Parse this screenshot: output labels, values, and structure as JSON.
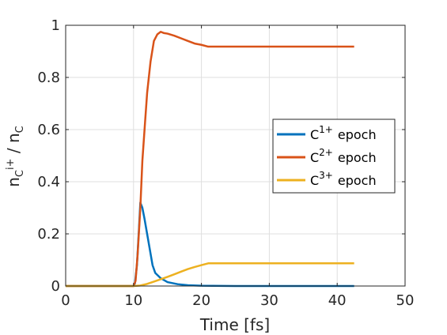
{
  "chart_data": {
    "type": "line",
    "xlabel": "Time [fs]",
    "ylabel": {
      "base1": "n",
      "sub1": "C",
      "sup1": "i+",
      "slash": " / ",
      "base2": "n",
      "sub2": "C"
    },
    "xlim": [
      0,
      50
    ],
    "ylim": [
      0,
      1
    ],
    "x_ticks": [
      0,
      10,
      20,
      30,
      40,
      50
    ],
    "y_ticks": [
      0,
      0.2,
      0.4,
      0.6,
      0.8,
      1
    ],
    "x_tick_labels": [
      "0",
      "10",
      "20",
      "30",
      "40",
      "50"
    ],
    "y_tick_labels": [
      "0",
      "0.2",
      "0.4",
      "0.6",
      "0.8",
      "1"
    ],
    "grid": true,
    "legend_position": "right",
    "series": [
      {
        "name": "C1+ epoch",
        "label_base": "C",
        "label_sup": "1+",
        "label_text": "epoch",
        "color": "#0072BD",
        "x": [
          0,
          5,
          10,
          10.2,
          10.5,
          10.8,
          11.0,
          11.3,
          11.6,
          12.0,
          12.4,
          12.8,
          13.2,
          14.0,
          15.0,
          16.5,
          18,
          20,
          25,
          30,
          35,
          40,
          42.5
        ],
        "y": [
          0,
          0,
          0,
          0.01,
          0.08,
          0.22,
          0.32,
          0.3,
          0.26,
          0.2,
          0.14,
          0.08,
          0.05,
          0.03,
          0.015,
          0.007,
          0.003,
          0.001,
          0,
          0,
          0,
          0,
          0
        ]
      },
      {
        "name": "C2+ epoch",
        "label_base": "C",
        "label_sup": "2+",
        "label_text": "epoch",
        "color": "#D95319",
        "x": [
          0,
          5,
          10,
          10.3,
          10.6,
          11.0,
          11.3,
          11.7,
          12.0,
          12.5,
          13.0,
          13.5,
          14.0,
          14.5,
          15,
          16,
          17,
          18,
          19,
          20,
          21,
          25,
          30,
          35,
          40,
          42.5
        ],
        "y": [
          0,
          0,
          0,
          0.02,
          0.12,
          0.3,
          0.48,
          0.63,
          0.74,
          0.86,
          0.94,
          0.965,
          0.975,
          0.97,
          0.968,
          0.96,
          0.95,
          0.94,
          0.93,
          0.925,
          0.918,
          0.918,
          0.918,
          0.918,
          0.918,
          0.918
        ]
      },
      {
        "name": "C3+ epoch",
        "label_base": "C",
        "label_sup": "3+",
        "label_text": "epoch",
        "color": "#EDB120",
        "x": [
          0,
          5,
          10,
          11,
          12,
          13,
          14,
          15,
          16,
          17,
          18,
          19,
          20,
          21,
          25,
          30,
          35,
          40,
          42.5
        ],
        "y": [
          0,
          0,
          0,
          0.002,
          0.008,
          0.017,
          0.026,
          0.035,
          0.045,
          0.055,
          0.065,
          0.073,
          0.08,
          0.087,
          0.087,
          0.087,
          0.087,
          0.087,
          0.087
        ]
      }
    ]
  }
}
